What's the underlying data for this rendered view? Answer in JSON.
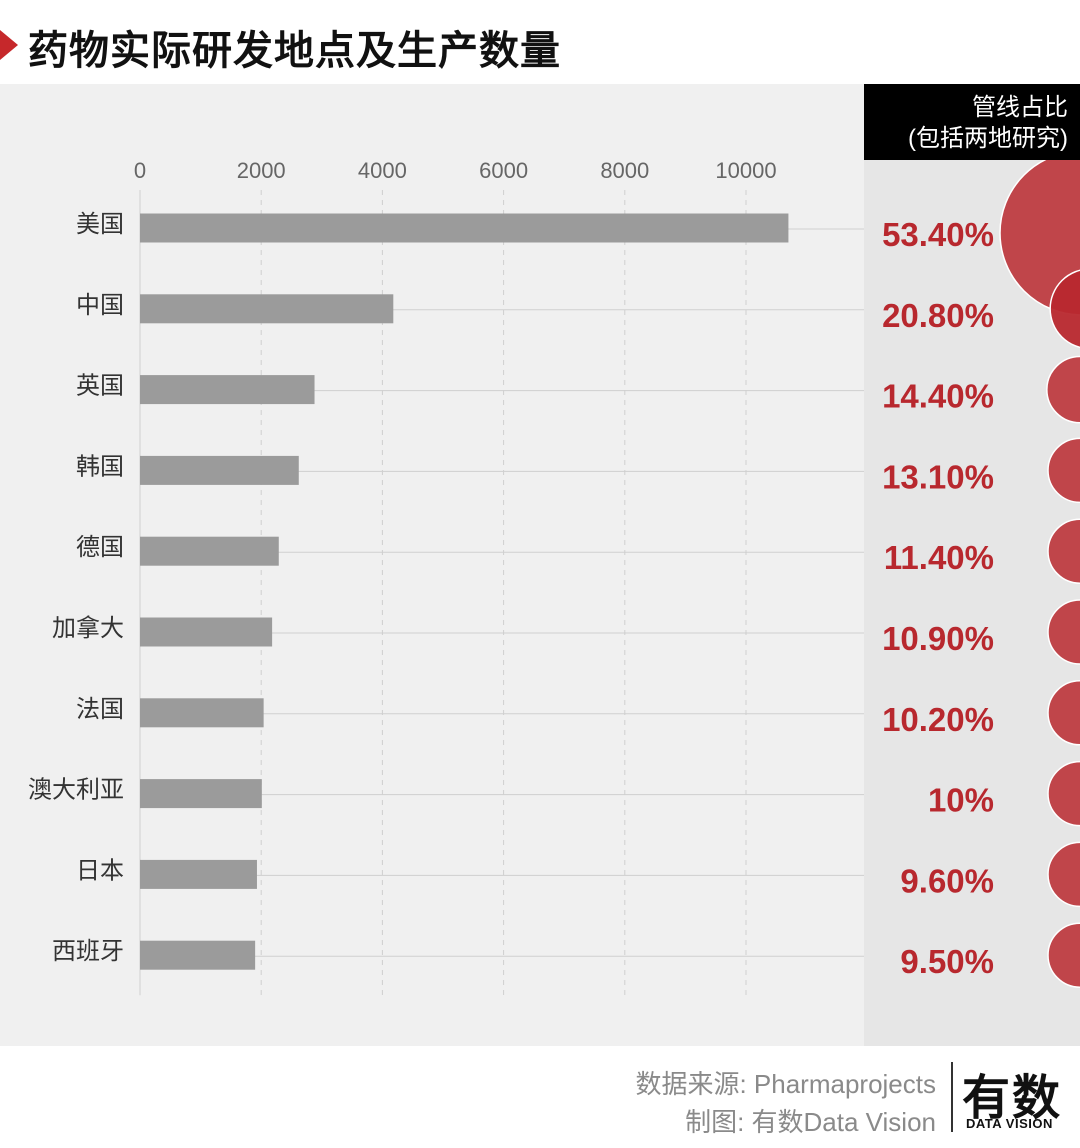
{
  "header": {
    "title": "药物实际研发地点及生产数量"
  },
  "side_header": {
    "line1": "管线占比",
    "line2": "(包括两地研究)"
  },
  "chart_data": {
    "type": "bar",
    "orientation": "horizontal",
    "title": "药物实际研发地点及生产数量",
    "categories": [
      "美国",
      "中国",
      "英国",
      "韩国",
      "德国",
      "加拿大",
      "法国",
      "澳大利亚",
      "日本",
      "西班牙"
    ],
    "values": [
      10700,
      4180,
      2880,
      2620,
      2290,
      2180,
      2040,
      2010,
      1930,
      1900
    ],
    "xlim": [
      0,
      11500
    ],
    "xticks": [
      0,
      2000,
      4000,
      6000,
      8000,
      10000
    ],
    "xtick_labels": [
      "0",
      "2000",
      "4000",
      "6000",
      "8000",
      "10000"
    ],
    "grid": true,
    "share_labels": [
      "53.40%",
      "20.80%",
      "14.40%",
      "13.10%",
      "11.40%",
      "10.90%",
      "10.20%",
      "10%",
      "9.60%",
      "9.50%"
    ],
    "share_values": [
      53.4,
      20.8,
      14.4,
      13.1,
      11.4,
      10.9,
      10.2,
      10.0,
      9.6,
      9.5
    ],
    "colors": {
      "bar": "#9b9b9b",
      "share_text": "#b8282e",
      "bubble": "#b8282e"
    }
  },
  "footer": {
    "source": "数据来源: Pharmaprojects",
    "credit": "制图: 有数Data Vision",
    "logo": "有数",
    "logo_sub": "DATA VISION"
  }
}
